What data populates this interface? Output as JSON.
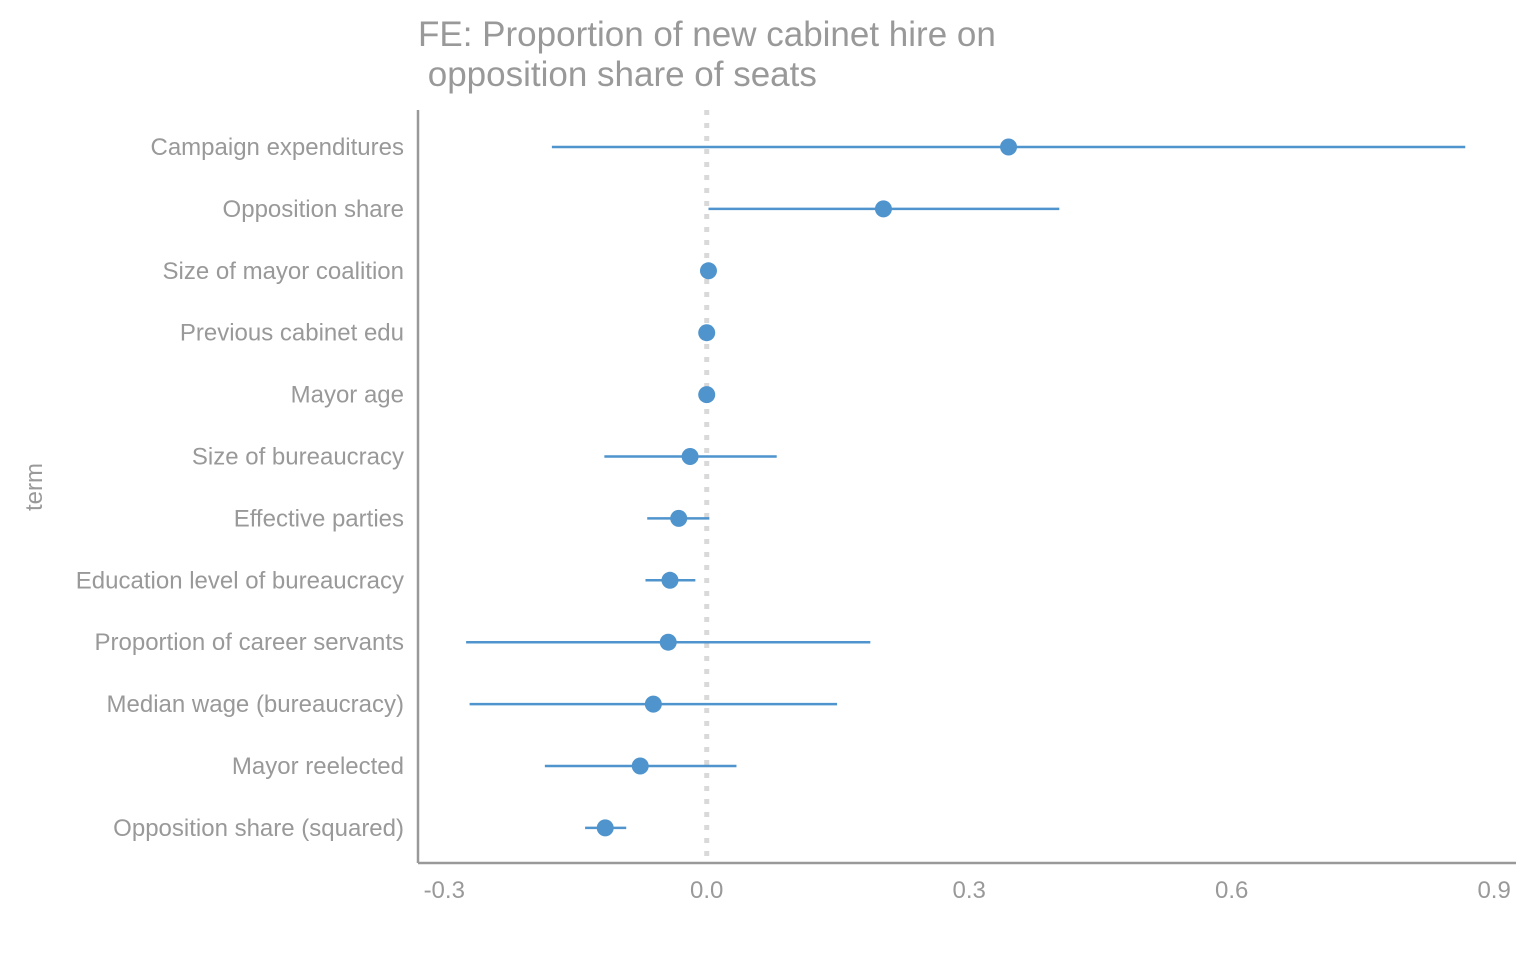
{
  "chart_data": {
    "type": "scatter",
    "subtype": "coefficient-plot",
    "title_lines": [
      "FE: Proportion of new cabinet hire on",
      " opposition share of seats"
    ],
    "xlabel": "",
    "ylabel": "term",
    "xlim": [
      -0.33,
      0.925
    ],
    "xticks": [
      -0.3,
      0.0,
      0.3,
      0.6,
      0.9
    ],
    "xtick_labels": [
      "-0.3",
      "0.0",
      "0.3",
      "0.6",
      "0.9"
    ],
    "reference_line": 0.0,
    "grid": false,
    "point_color": "#4f94cd",
    "axis_color": "#999999",
    "reference_color": "#d9d9d9",
    "terms": [
      {
        "label": "Campaign expenditures",
        "estimate": 0.345,
        "low": -0.177,
        "high": 0.867
      },
      {
        "label": "Opposition share",
        "estimate": 0.202,
        "low": 0.002,
        "high": 0.403
      },
      {
        "label": "Size of mayor coalition",
        "estimate": 0.002,
        "low": 0.0,
        "high": 0.004
      },
      {
        "label": "Previous cabinet edu",
        "estimate": 0.0,
        "low": -0.001,
        "high": 0.001
      },
      {
        "label": "Mayor age",
        "estimate": 0.0,
        "low": -0.001,
        "high": 0.001
      },
      {
        "label": "Size of bureaucracy",
        "estimate": -0.019,
        "low": -0.117,
        "high": 0.08
      },
      {
        "label": "Effective parties",
        "estimate": -0.032,
        "low": -0.068,
        "high": 0.003
      },
      {
        "label": "Education level of bureaucracy",
        "estimate": -0.042,
        "low": -0.07,
        "high": -0.013
      },
      {
        "label": "Proportion of career servants",
        "estimate": -0.044,
        "low": -0.275,
        "high": 0.187
      },
      {
        "label": "Median wage (bureaucracy)",
        "estimate": -0.061,
        "low": -0.271,
        "high": 0.149
      },
      {
        "label": "Mayor reelected",
        "estimate": -0.076,
        "low": -0.185,
        "high": 0.034
      },
      {
        "label": "Opposition share (squared)",
        "estimate": -0.116,
        "low": -0.139,
        "high": -0.092
      }
    ]
  }
}
